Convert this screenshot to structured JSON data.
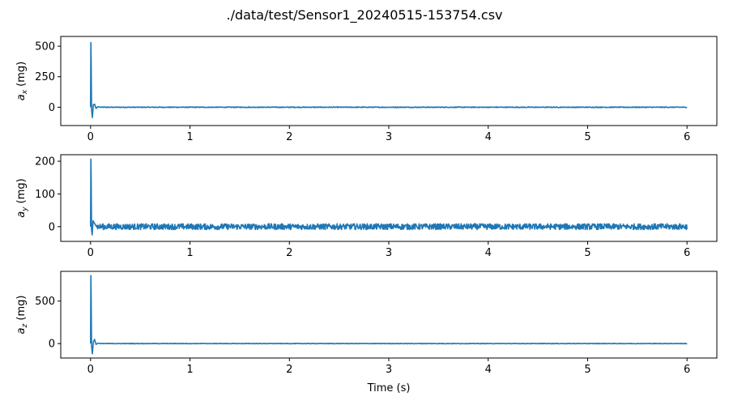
{
  "figure": {
    "title": "./data/test/Sensor1_20240515-153754.csv",
    "xlabel": "Time (s)"
  },
  "chart_data": [
    {
      "type": "line",
      "ylabel": {
        "symbol": "a",
        "sub": "x",
        "unit": "(mg)"
      },
      "xlim": [
        -0.3,
        6.3
      ],
      "ylim": [
        -150,
        580
      ],
      "xticks": [
        0,
        1,
        2,
        3,
        4,
        5,
        6
      ],
      "yticks": [
        0,
        250,
        500
      ],
      "grid": false,
      "color": "#1f77b4",
      "features": {
        "peak": 530,
        "trough": -85,
        "ringing": [
          [
            0.0,
            0
          ],
          [
            0.003,
            530
          ],
          [
            0.006,
            380
          ],
          [
            0.01,
            -20
          ],
          [
            0.018,
            -85
          ],
          [
            0.028,
            20
          ],
          [
            0.04,
            25
          ],
          [
            0.055,
            -10
          ],
          [
            0.075,
            5
          ],
          [
            0.1,
            0
          ]
        ],
        "noise_amplitude": 3,
        "baseline": 0
      },
      "x_end": 6.0
    },
    {
      "type": "line",
      "ylabel": {
        "symbol": "a",
        "sub": "y",
        "unit": "(mg)"
      },
      "xlim": [
        -0.3,
        6.3
      ],
      "ylim": [
        -45,
        220
      ],
      "xticks": [
        0,
        1,
        2,
        3,
        4,
        5,
        6
      ],
      "yticks": [
        0,
        100,
        200
      ],
      "grid": false,
      "color": "#1f77b4",
      "features": {
        "peak": 207,
        "trough": -25,
        "ringing": [
          [
            0.0,
            0
          ],
          [
            0.003,
            207
          ],
          [
            0.006,
            150
          ],
          [
            0.01,
            -10
          ],
          [
            0.016,
            -25
          ],
          [
            0.025,
            18
          ],
          [
            0.04,
            10
          ],
          [
            0.06,
            0
          ]
        ],
        "noise_amplitude": 9,
        "baseline": 0
      },
      "x_end": 6.0
    },
    {
      "type": "line",
      "ylabel": {
        "symbol": "a",
        "sub": "z",
        "unit": "(mg)"
      },
      "xlim": [
        -0.3,
        6.3
      ],
      "ylim": [
        -170,
        850
      ],
      "xticks": [
        0,
        1,
        2,
        3,
        4,
        5,
        6
      ],
      "yticks": [
        0,
        500
      ],
      "grid": false,
      "color": "#1f77b4",
      "features": {
        "peak": 800,
        "trough": -120,
        "ringing": [
          [
            0.0,
            0
          ],
          [
            0.003,
            800
          ],
          [
            0.006,
            550
          ],
          [
            0.01,
            -30
          ],
          [
            0.018,
            -120
          ],
          [
            0.028,
            20
          ],
          [
            0.04,
            50
          ],
          [
            0.055,
            -10
          ],
          [
            0.075,
            5
          ],
          [
            0.1,
            0
          ]
        ],
        "noise_amplitude": 3,
        "baseline": 0
      },
      "x_end": 6.0
    }
  ]
}
